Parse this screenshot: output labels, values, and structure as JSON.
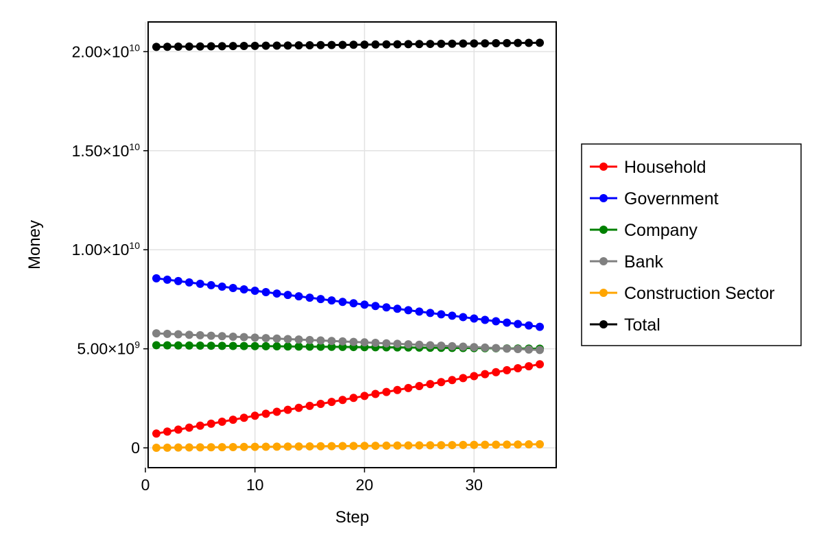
{
  "chart_data": {
    "type": "line",
    "title": "",
    "xlabel": "Step",
    "ylabel": "Money",
    "xlim": [
      0.25,
      37.5
    ],
    "ylim": [
      -1000000000.0,
      21500000000.0
    ],
    "grid": true,
    "legend_position": "right",
    "x_ticks": [
      {
        "value": 0,
        "label": "0"
      },
      {
        "value": 10,
        "label": "10"
      },
      {
        "value": 20,
        "label": "20"
      },
      {
        "value": 30,
        "label": "30"
      }
    ],
    "y_ticks": [
      {
        "value": 0,
        "label": "0",
        "mantissa": "0",
        "exponent": ""
      },
      {
        "value": 5000000000.0,
        "label": "5.00×10⁹",
        "mantissa": "5.00×10",
        "exponent": "9"
      },
      {
        "value": 10000000000.0,
        "label": "1.00×10¹⁰",
        "mantissa": "1.00×10",
        "exponent": "10"
      },
      {
        "value": 15000000000.0,
        "label": "1.50×10¹⁰",
        "mantissa": "1.50×10",
        "exponent": "10"
      },
      {
        "value": 20000000000.0,
        "label": "2.00×10¹⁰",
        "mantissa": "2.00×10",
        "exponent": "10"
      }
    ],
    "x": [
      1,
      2,
      3,
      4,
      5,
      6,
      7,
      8,
      9,
      10,
      11,
      12,
      13,
      14,
      15,
      16,
      17,
      18,
      19,
      20,
      21,
      22,
      23,
      24,
      25,
      26,
      27,
      28,
      29,
      30,
      31,
      32,
      33,
      34,
      35,
      36
    ],
    "series": [
      {
        "name": "Household",
        "color": "#ff0000",
        "values": [
          720000000,
          820000000,
          920000000,
          1020000000,
          1120000000,
          1220000000,
          1320000000,
          1420000000,
          1520000000,
          1620000000,
          1720000000,
          1820000000,
          1920000000,
          2020000000,
          2120000000,
          2220000000,
          2320000000,
          2420000000,
          2520000000,
          2620000000,
          2720000000,
          2820000000,
          2920000000,
          3020000000,
          3120000000,
          3220000000,
          3320000000,
          3420000000,
          3520000000,
          3620000000,
          3720000000,
          3820000000,
          3920000000,
          4020000000,
          4120000000,
          4220000000
        ]
      },
      {
        "name": "Government",
        "color": "#0000ff",
        "values": [
          8560000000,
          8490000000,
          8420000000,
          8350000000,
          8280000000,
          8210000000,
          8140000000,
          8070000000,
          8000000000,
          7930000000,
          7860000000,
          7790000000,
          7720000000,
          7650000000,
          7580000000,
          7510000000,
          7440000000,
          7370000000,
          7300000000,
          7230000000,
          7160000000,
          7090000000,
          7020000000,
          6950000000,
          6880000000,
          6810000000,
          6740000000,
          6670000000,
          6600000000,
          6530000000,
          6460000000,
          6390000000,
          6320000000,
          6250000000,
          6180000000,
          6110000000
        ]
      },
      {
        "name": "Company",
        "color": "#008000",
        "values": [
          5180000000,
          5175000000,
          5170000000,
          5165000000,
          5160000000,
          5155000000,
          5150000000,
          5145000000,
          5140000000,
          5135000000,
          5130000000,
          5125000000,
          5120000000,
          5115000000,
          5110000000,
          5105000000,
          5100000000,
          5095000000,
          5090000000,
          5085000000,
          5080000000,
          5075000000,
          5070000000,
          5065000000,
          5060000000,
          5055000000,
          5050000000,
          5045000000,
          5040000000,
          5035000000,
          5030000000,
          5025000000,
          5020000000,
          5015000000,
          5010000000,
          5005000000
        ]
      },
      {
        "name": "Bank",
        "color": "#808080",
        "values": [
          5780000000,
          5756000000,
          5732000000,
          5708000000,
          5684000000,
          5660000000,
          5636000000,
          5612000000,
          5588000000,
          5564000000,
          5540000000,
          5516000000,
          5492000000,
          5468000000,
          5444000000,
          5420000000,
          5396000000,
          5372000000,
          5348000000,
          5324000000,
          5300000000,
          5276000000,
          5252000000,
          5228000000,
          5204000000,
          5180000000,
          5156000000,
          5132000000,
          5108000000,
          5084000000,
          5060000000,
          5036000000,
          5012000000,
          4988000000,
          4964000000,
          4940000000
        ]
      },
      {
        "name": "Construction Sector",
        "color": "#ffa500",
        "values": [
          5000000,
          10000000,
          15000000,
          20000000,
          25000000,
          30000000,
          35000000,
          40000000,
          45000000,
          50000000,
          55000000,
          60000000,
          65000000,
          70000000,
          75000000,
          80000000,
          85000000,
          90000000,
          95000000,
          100000000,
          105000000,
          110000000,
          115000000,
          120000000,
          125000000,
          130000000,
          135000000,
          140000000,
          145000000,
          150000000,
          155000000,
          160000000,
          165000000,
          170000000,
          175000000,
          180000000
        ]
      },
      {
        "name": "Total",
        "color": "#000000",
        "values": [
          20240000000,
          20246000000,
          20252000000,
          20258000000,
          20264000000,
          20270000000,
          20276000000,
          20282000000,
          20288000000,
          20294000000,
          20300000000,
          20306000000,
          20312000000,
          20318000000,
          20324000000,
          20330000000,
          20336000000,
          20342000000,
          20348000000,
          20354000000,
          20360000000,
          20366000000,
          20372000000,
          20378000000,
          20384000000,
          20390000000,
          20396000000,
          20402000000,
          20408000000,
          20414000000,
          20420000000,
          20426000000,
          20432000000,
          20438000000,
          20444000000,
          20450000000
        ]
      }
    ]
  }
}
